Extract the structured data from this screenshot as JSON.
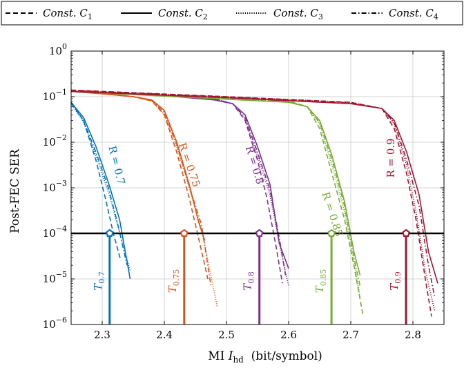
{
  "chart_data": {
    "type": "line",
    "xlabel": "MI I_hd (bit/symbol)",
    "xlabel_main": "MI ",
    "xlabel_sym": "I",
    "xlabel_sub": "hd",
    "xlabel_unit": "  (bit/symbol)",
    "ylabel": "Post-FEC SER",
    "xlim": [
      2.25,
      2.85
    ],
    "ylim": [
      1e-06,
      1
    ],
    "yscale": "log",
    "grid": true,
    "legend_placement": "top",
    "xticks": [
      "2.3",
      "2.4",
      "2.5",
      "2.6",
      "2.7",
      "2.8"
    ],
    "xtick_values": [
      2.3,
      2.4,
      2.5,
      2.6,
      2.7,
      2.8
    ],
    "yticks": [
      {
        "base": "10",
        "exp": "0",
        "value": 1
      },
      {
        "base": "10",
        "exp": "−1",
        "value": 0.1
      },
      {
        "base": "10",
        "exp": "−2",
        "value": 0.01
      },
      {
        "base": "10",
        "exp": "−3",
        "value": 0.001
      },
      {
        "base": "10",
        "exp": "−4",
        "value": 0.0001
      },
      {
        "base": "10",
        "exp": "−5",
        "value": 1e-05
      },
      {
        "base": "10",
        "exp": "−6",
        "value": 1e-06
      }
    ],
    "legend": [
      {
        "label": "Const. C",
        "sub": "1",
        "dash": "dashed"
      },
      {
        "label": "Const. C",
        "sub": "2",
        "dash": "solid"
      },
      {
        "label": "Const. C",
        "sub": "3",
        "dash": "dotted"
      },
      {
        "label": "Const. C",
        "sub": "4",
        "dash": "dashdot"
      }
    ],
    "threshold": {
      "value": 0.0001,
      "color": "#000000"
    },
    "rates": [
      {
        "rate_label": "R = 0.7",
        "t_label": "T",
        "t_sub": "0.7",
        "color": "#0072BD",
        "threshold_x": 2.312,
        "series": [
          {
            "name": "Const. C1",
            "dash": "dashed",
            "x": [
              2.25,
              2.27,
              2.29,
              2.305,
              2.318,
              2.33
            ],
            "y": [
              0.075,
              0.03,
              0.004,
              0.0006,
              0.0001,
              2.5e-05
            ]
          },
          {
            "name": "Const. C2",
            "dash": "solid",
            "x": [
              2.25,
              2.27,
              2.29,
              2.31,
              2.328,
              2.345
            ],
            "y": [
              0.075,
              0.035,
              0.008,
              0.0013,
              0.0002,
              1e-05
            ]
          },
          {
            "name": "Const. C3",
            "dash": "dotted",
            "x": [
              2.25,
              2.27,
              2.29,
              2.31,
              2.325,
              2.345
            ],
            "y": [
              0.07,
              0.028,
              0.005,
              0.0008,
              0.00015,
              1.5e-05
            ]
          },
          {
            "name": "Const. C4",
            "dash": "dashdot",
            "x": [
              2.25,
              2.27,
              2.29,
              2.31,
              2.325,
              2.34
            ],
            "y": [
              0.072,
              0.03,
              0.006,
              0.001,
              0.00016,
              2e-05
            ]
          }
        ]
      },
      {
        "rate_label": "R = 0.75",
        "t_label": "T",
        "t_sub": "0.75",
        "color": "#D95319",
        "threshold_x": 2.432,
        "series": [
          {
            "name": "Const. C1",
            "dash": "dashed",
            "x": [
              2.25,
              2.3,
              2.35,
              2.38,
              2.4,
              2.42,
              2.44,
              2.455,
              2.47
            ],
            "y": [
              0.135,
              0.12,
              0.1,
              0.08,
              0.04,
              0.006,
              0.0006,
              8e-05,
              1e-05
            ]
          },
          {
            "name": "Const. C2",
            "dash": "solid",
            "x": [
              2.25,
              2.3,
              2.35,
              2.38,
              2.4,
              2.42,
              2.44,
              2.455,
              2.465
            ],
            "y": [
              0.13,
              0.115,
              0.1,
              0.085,
              0.05,
              0.01,
              0.0012,
              0.00018,
              7e-05
            ]
          },
          {
            "name": "Const. C3",
            "dash": "dotted",
            "x": [
              2.25,
              2.3,
              2.35,
              2.38,
              2.4,
              2.42,
              2.44,
              2.46,
              2.485
            ],
            "y": [
              0.135,
              0.12,
              0.1,
              0.08,
              0.04,
              0.008,
              0.001,
              0.00012,
              2.5e-06
            ]
          },
          {
            "name": "Const. C4",
            "dash": "dashdot",
            "x": [
              2.25,
              2.3,
              2.35,
              2.38,
              2.4,
              2.42,
              2.44,
              2.46,
              2.475
            ],
            "y": [
              0.132,
              0.117,
              0.1,
              0.082,
              0.045,
              0.009,
              0.0011,
              0.00015,
              7e-06
            ]
          }
        ]
      },
      {
        "rate_label": "R = 0.8",
        "t_label": "T",
        "t_sub": "0.8",
        "color": "#7E2F8E",
        "threshold_x": 2.553,
        "series": [
          {
            "name": "Const. C1",
            "dash": "dashed",
            "x": [
              2.25,
              2.4,
              2.48,
              2.51,
              2.53,
              2.55,
              2.565,
              2.58,
              2.59
            ],
            "y": [
              0.135,
              0.11,
              0.09,
              0.07,
              0.03,
              0.004,
              0.0006,
              5e-05,
              8e-06
            ]
          },
          {
            "name": "Const. C2",
            "dash": "solid",
            "x": [
              2.25,
              2.4,
              2.48,
              2.51,
              2.53,
              2.55,
              2.57,
              2.585,
              2.6
            ],
            "y": [
              0.13,
              0.105,
              0.085,
              0.07,
              0.04,
              0.008,
              0.0012,
              6e-05,
              1.7e-05
            ]
          },
          {
            "name": "Const. C3",
            "dash": "dotted",
            "x": [
              2.25,
              2.4,
              2.48,
              2.51,
              2.53,
              2.55,
              2.57,
              2.585,
              2.6
            ],
            "y": [
              0.135,
              0.11,
              0.09,
              0.07,
              0.032,
              0.005,
              0.0007,
              6e-05,
              7e-06
            ]
          },
          {
            "name": "Const. C4",
            "dash": "dashdot",
            "x": [
              2.25,
              2.4,
              2.48,
              2.51,
              2.53,
              2.55,
              2.57,
              2.585,
              2.595
            ],
            "y": [
              0.132,
              0.108,
              0.088,
              0.07,
              0.035,
              0.006,
              0.0009,
              8e-05,
              1.2e-05
            ]
          }
        ]
      },
      {
        "rate_label": "R = 0.85",
        "t_label": "T",
        "t_sub": "0.85",
        "color": "#77AC30",
        "threshold_x": 2.669,
        "series": [
          {
            "name": "Const. C1",
            "dash": "dashed",
            "x": [
              2.25,
              2.45,
              2.6,
              2.63,
              2.65,
              2.67,
              2.69,
              2.705,
              2.72
            ],
            "y": [
              0.135,
              0.1,
              0.08,
              0.06,
              0.02,
              0.002,
              0.0002,
              2e-05,
              1.5e-06
            ]
          },
          {
            "name": "Const. C2",
            "dash": "solid",
            "x": [
              2.25,
              2.45,
              2.6,
              2.63,
              2.65,
              2.67,
              2.69,
              2.705,
              2.715
            ],
            "y": [
              0.13,
              0.095,
              0.075,
              0.06,
              0.03,
              0.005,
              0.0005,
              4e-05,
              1.2e-05
            ]
          },
          {
            "name": "Const. C3",
            "dash": "dotted",
            "x": [
              2.25,
              2.45,
              2.6,
              2.63,
              2.65,
              2.67,
              2.69,
              2.705,
              2.715
            ],
            "y": [
              0.135,
              0.1,
              0.08,
              0.06,
              0.025,
              0.003,
              0.0003,
              2.5e-05,
              4e-06
            ]
          },
          {
            "name": "Const. C4",
            "dash": "dashdot",
            "x": [
              2.25,
              2.45,
              2.6,
              2.63,
              2.65,
              2.67,
              2.69,
              2.705,
              2.715
            ],
            "y": [
              0.132,
              0.098,
              0.078,
              0.06,
              0.027,
              0.004,
              0.0004,
              3e-05,
              7e-06
            ]
          }
        ]
      },
      {
        "rate_label": "R = 0.9",
        "t_label": "T",
        "t_sub": "0.9",
        "color": "#A2142F",
        "threshold_x": 2.789,
        "series": [
          {
            "name": "Const. C1",
            "dash": "dashed",
            "x": [
              2.25,
              2.5,
              2.7,
              2.75,
              2.77,
              2.79,
              2.805,
              2.82,
              2.83
            ],
            "y": [
              0.14,
              0.1,
              0.075,
              0.055,
              0.02,
              0.002,
              0.0002,
              1e-05,
              1.5e-06
            ]
          },
          {
            "name": "Const. C2",
            "dash": "solid",
            "x": [
              2.25,
              2.5,
              2.7,
              2.75,
              2.77,
              2.79,
              2.81,
              2.825,
              2.84
            ],
            "y": [
              0.13,
              0.095,
              0.07,
              0.055,
              0.03,
              0.006,
              0.0007,
              4e-05,
              8e-06
            ]
          },
          {
            "name": "Const. C3",
            "dash": "dotted",
            "x": [
              2.25,
              2.5,
              2.7,
              2.75,
              2.77,
              2.79,
              2.805,
              2.82,
              2.835
            ],
            "y": [
              0.135,
              0.1,
              0.075,
              0.055,
              0.025,
              0.003,
              0.0003,
              1.5e-05,
              2e-06
            ]
          },
          {
            "name": "Const. C4",
            "dash": "dashdot",
            "x": [
              2.25,
              2.5,
              2.7,
              2.75,
              2.77,
              2.79,
              2.81,
              2.825,
              2.835
            ],
            "y": [
              0.138,
              0.098,
              0.072,
              0.055,
              0.027,
              0.004,
              0.0004,
              2e-05,
              4e-06
            ]
          }
        ]
      }
    ]
  }
}
